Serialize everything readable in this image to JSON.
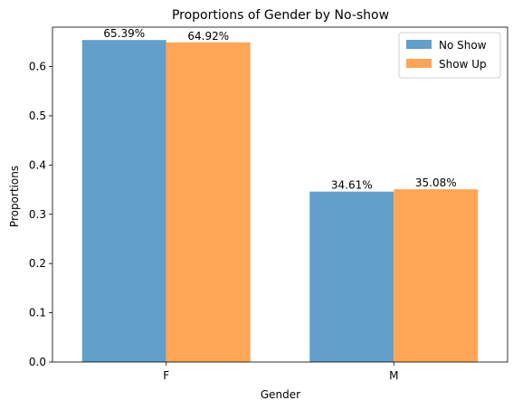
{
  "chart_data": {
    "type": "bar",
    "title": "Proportions of Gender by No-show",
    "xlabel": "Gender",
    "ylabel": "Proportions",
    "categories": [
      "F",
      "M"
    ],
    "ylim": [
      0,
      0.68
    ],
    "yticks": [
      0.0,
      0.1,
      0.2,
      0.3,
      0.4,
      0.5,
      0.6
    ],
    "ytick_labels": [
      "0.0",
      "0.1",
      "0.2",
      "0.3",
      "0.4",
      "0.5",
      "0.6"
    ],
    "grid": false,
    "legend_position": "top-right",
    "series": [
      {
        "name": "No Show",
        "color": "#629fca",
        "values": [
          0.6539,
          0.3461
        ],
        "labels": [
          "65.39%",
          "34.61%"
        ]
      },
      {
        "name": "Show Up",
        "color": "#ffa556",
        "values": [
          0.6492,
          0.3508
        ],
        "labels": [
          "64.92%",
          "35.08%"
        ]
      }
    ]
  }
}
